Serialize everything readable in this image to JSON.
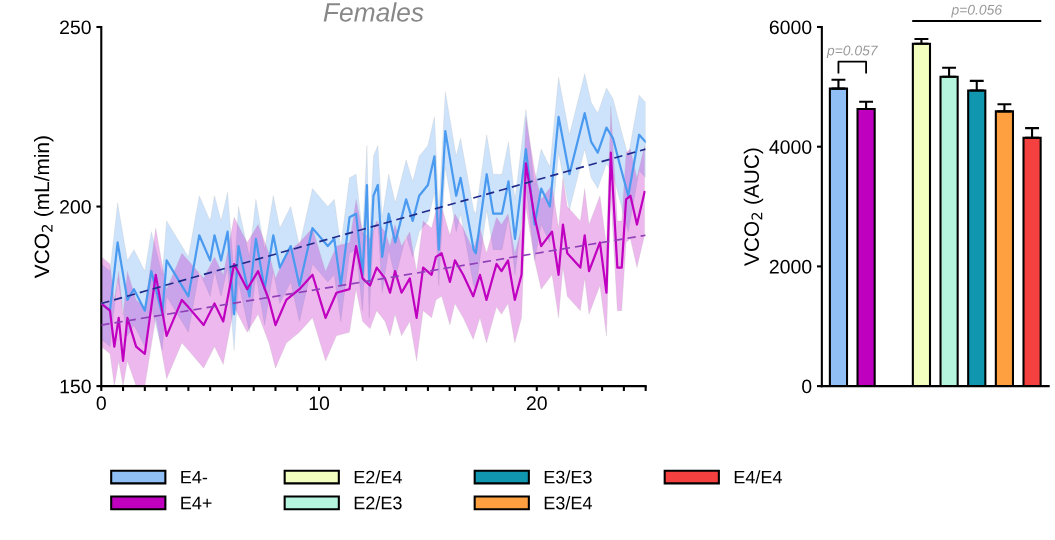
{
  "chart_data": [
    {
      "type": "line",
      "title": "Females",
      "ylabel": "VCO$_{2}$ (mL/min)",
      "xlim": [
        0,
        25
      ],
      "ylim": [
        150,
        250
      ],
      "yticks": [
        150,
        200,
        250
      ],
      "xticks": [
        0,
        {
          "value": 1,
          "label": null
        },
        {
          "value": 2,
          "label": null
        },
        {
          "value": 3,
          "label": null
        },
        {
          "value": 4,
          "label": null
        },
        {
          "value": 5,
          "label": null
        },
        {
          "value": 6,
          "label": null
        },
        {
          "value": 7,
          "label": null
        },
        {
          "value": 8,
          "label": null
        },
        {
          "value": 9,
          "label": null
        },
        10,
        {
          "value": 11,
          "label": null
        },
        {
          "value": 12,
          "label": null
        },
        {
          "value": 13,
          "label": null
        },
        {
          "value": 14,
          "label": null
        },
        {
          "value": 15,
          "label": null
        },
        {
          "value": 16,
          "label": null
        },
        {
          "value": 17,
          "label": null
        },
        {
          "value": 18,
          "label": null
        },
        {
          "value": 19,
          "label": null
        },
        20,
        {
          "value": 21,
          "label": null
        },
        {
          "value": 22,
          "label": null
        },
        {
          "value": 23,
          "label": null
        },
        {
          "value": 24,
          "label": null
        },
        {
          "value": 25,
          "label": null
        }
      ],
      "grid": false,
      "series": [
        {
          "color": "#4a9af0",
          "x": [
            0,
            0.4,
            0.75,
            1.2,
            1.5,
            2,
            2.3,
            2.8,
            3,
            3.7,
            4,
            4.5,
            5,
            5.2,
            5.5,
            5.8,
            6.1,
            6.3,
            6.8,
            7.1,
            7.5,
            7.9,
            8.2,
            8.7,
            9.1,
            9.7,
            10.4,
            10.7,
            11,
            11.4,
            11.7,
            12,
            12.2,
            12.3,
            12.5,
            12.7,
            12.9,
            13.2,
            13.5,
            14,
            14.3,
            14.6,
            15,
            15.3,
            15.5,
            15.8,
            16.3,
            16.5,
            17.1,
            17.2,
            17.7,
            18,
            18.4,
            18.7,
            19,
            19.5,
            19.9,
            20.2,
            20.6,
            21,
            21.5,
            22.2,
            22.5,
            22.8,
            23.2,
            23.5,
            23.8,
            24.2,
            24.7,
            25
          ],
          "values": [
            173,
            171,
            190,
            174,
            177,
            171,
            182,
            170,
            185,
            178,
            175,
            192,
            185,
            192,
            185,
            193,
            170,
            189,
            175,
            191,
            177,
            192,
            183,
            189,
            178,
            194,
            189,
            191,
            178,
            197,
            198,
            181,
            206,
            179,
            203,
            206,
            186,
            198,
            190,
            202,
            196,
            203,
            206,
            214,
            188,
            221,
            203,
            208,
            188,
            187,
            209,
            198,
            198,
            207,
            191,
            216,
            195,
            205,
            200,
            225,
            209,
            226,
            218,
            215,
            222,
            219,
            212,
            203,
            220,
            218
          ],
          "lower": [
            163,
            161,
            180,
            164,
            167,
            161,
            172,
            160,
            175,
            168,
            165,
            182,
            175,
            182,
            175,
            183,
            160,
            179,
            165,
            181,
            167,
            182,
            173,
            179,
            168,
            184,
            179,
            181,
            168,
            187,
            188,
            171,
            196,
            169,
            193,
            196,
            176,
            188,
            180,
            192,
            186,
            193,
            196,
            204,
            178,
            211,
            193,
            198,
            178,
            177,
            199,
            188,
            188,
            197,
            181,
            206,
            185,
            195,
            190,
            215,
            199,
            216,
            208,
            205,
            212,
            209,
            202,
            193,
            210,
            208
          ],
          "upper": [
            184,
            182,
            201,
            185,
            188,
            182,
            193,
            181,
            196,
            189,
            186,
            203,
            196,
            203,
            196,
            204,
            181,
            200,
            186,
            202,
            188,
            203,
            194,
            200,
            189,
            205,
            200,
            202,
            189,
            208,
            209,
            192,
            217,
            190,
            214,
            217,
            197,
            209,
            201,
            213,
            207,
            214,
            217,
            225,
            199,
            232,
            214,
            219,
            199,
            198,
            220,
            209,
            209,
            218,
            202,
            227,
            206,
            216,
            211,
            236,
            220,
            237,
            229,
            226,
            233,
            230,
            223,
            214,
            231,
            229
          ]
        },
        {
          "color": "#c000c0",
          "x": [
            0,
            0.4,
            0.6,
            0.8,
            1.0,
            1.2,
            1.6,
            2.0,
            2.5,
            3,
            3.7,
            4,
            4.7,
            5.2,
            5.6,
            6.1,
            6.7,
            7.2,
            7.7,
            8.0,
            8.5,
            9.1,
            9.7,
            10.3,
            10.8,
            11.4,
            11.7,
            12.0,
            12.34,
            12.65,
            13.03,
            13.26,
            13.49,
            13.79,
            14.17,
            14.48,
            14.78,
            15.17,
            15.37,
            15.63,
            16.01,
            16.24,
            16.62,
            17.08,
            17.39,
            17.69,
            18.15,
            18.38,
            18.68,
            18.99,
            19.3,
            19.5,
            19.9,
            20.2,
            20.7,
            21.0,
            21.2,
            21.4,
            22.0,
            22.2,
            22.4,
            22.9,
            23.2,
            23.4,
            23.7,
            23.9,
            24.1,
            24.3,
            24.6,
            24.95
          ],
          "values": [
            173,
            171,
            161,
            169,
            157,
            169,
            161,
            159,
            181,
            164,
            174,
            172,
            167,
            173,
            168,
            184,
            177,
            182,
            174,
            167,
            174,
            177,
            181,
            169,
            176,
            177,
            189,
            180,
            178,
            183,
            180,
            176,
            182,
            176,
            180,
            169,
            183,
            181,
            186,
            187,
            179,
            185,
            181,
            175,
            181,
            174,
            184,
            182,
            185,
            174,
            181,
            212,
            197,
            189,
            193,
            181,
            195,
            187,
            183,
            192,
            182,
            190,
            176,
            215,
            183,
            183,
            202,
            203,
            195,
            204
          ],
          "lower": [
            161,
            159,
            150,
            157,
            150,
            157,
            150,
            150,
            169,
            152,
            162,
            160,
            155,
            161,
            156,
            172,
            165,
            170,
            162,
            155,
            162,
            165,
            169,
            157,
            164,
            165,
            177,
            168,
            166,
            171,
            168,
            164,
            170,
            164,
            168,
            157,
            171,
            169,
            174,
            175,
            167,
            173,
            169,
            163,
            169,
            162,
            172,
            170,
            173,
            162,
            169,
            200,
            185,
            177,
            181,
            169,
            183,
            175,
            171,
            180,
            170,
            178,
            164,
            203,
            171,
            171,
            190,
            191,
            183,
            192
          ],
          "upper": [
            186,
            184,
            174,
            182,
            170,
            182,
            174,
            172,
            194,
            177,
            187,
            185,
            180,
            186,
            181,
            197,
            190,
            195,
            187,
            180,
            187,
            190,
            194,
            182,
            189,
            190,
            202,
            193,
            191,
            196,
            193,
            189,
            195,
            189,
            193,
            182,
            196,
            194,
            199,
            200,
            192,
            198,
            194,
            188,
            194,
            187,
            197,
            195,
            198,
            187,
            194,
            225,
            210,
            202,
            206,
            194,
            208,
            200,
            196,
            205,
            195,
            203,
            189,
            228,
            196,
            196,
            215,
            216,
            208,
            217
          ]
        },
        {
          "type": "line",
          "color": "#1f2a8a",
          "line_style": "dashed",
          "x": [
            0,
            25
          ],
          "values": [
            173,
            216
          ]
        },
        {
          "type": "line",
          "color": "#9040b8",
          "line_style": "dashed",
          "x": [
            0,
            25
          ],
          "values": [
            167,
            192
          ]
        }
      ]
    },
    {
      "type": "bar",
      "ylabel": "VCO$_{2}$ (AUC)",
      "categories": [
        null,
        null,
        null,
        null,
        null,
        null,
        null,
        null
      ],
      "ylim": [
        0,
        6000
      ],
      "yticks": [
        0,
        2000,
        4000,
        6000
      ],
      "tick_labels": "y",
      "legend": "bottom",
      "grid": false,
      "series": [
        {
          "name": "E4-",
          "color": "#8fbff5",
          "values": [
            4970,
            null,
            null,
            null,
            null,
            null,
            null,
            null
          ],
          "errors": [
            [
              4970,
              5120
            ],
            null,
            null,
            null,
            null,
            null,
            null,
            null
          ]
        },
        {
          "name": "E4+",
          "color": "#bf00bf",
          "values": [
            null,
            4630,
            null,
            null,
            null,
            null,
            null,
            null
          ],
          "errors": [
            null,
            [
              4630,
              4750
            ],
            null,
            null,
            null,
            null,
            null,
            null
          ]
        },
        {
          "name": "E2/E4",
          "color": "#f2ffbf",
          "values": [
            null,
            null,
            null,
            5720,
            null,
            null,
            null,
            null
          ],
          "errors": [
            null,
            null,
            null,
            [
              5720,
              5800
            ],
            null,
            null,
            null,
            null
          ]
        },
        {
          "name": "E2/E3",
          "color": "#b5f5de",
          "values": [
            null,
            null,
            null,
            null,
            5170,
            null,
            null,
            null
          ],
          "errors": [
            null,
            null,
            null,
            null,
            [
              5170,
              5320
            ],
            null,
            null,
            null
          ]
        },
        {
          "name": "E3/E3",
          "color": "#1196b0",
          "values": [
            null,
            null,
            null,
            null,
            null,
            4940,
            null,
            null
          ],
          "errors": [
            null,
            null,
            null,
            null,
            null,
            [
              4940,
              5100
            ],
            null,
            null
          ]
        },
        {
          "name": "E3/E4",
          "color": "#ffa040",
          "values": [
            null,
            null,
            null,
            null,
            null,
            null,
            4590,
            null
          ],
          "errors": [
            null,
            null,
            null,
            null,
            null,
            null,
            [
              4590,
              4710
            ],
            null
          ]
        },
        {
          "name": "E4/E4",
          "color": "#f54040",
          "values": [
            null,
            null,
            null,
            null,
            null,
            null,
            null,
            4150
          ],
          "errors": [
            null,
            null,
            null,
            null,
            null,
            null,
            null,
            [
              4150,
              4310
            ]
          ]
        }
      ],
      "annotations": [
        "p=0.057",
        "p=0.056"
      ]
    }
  ]
}
